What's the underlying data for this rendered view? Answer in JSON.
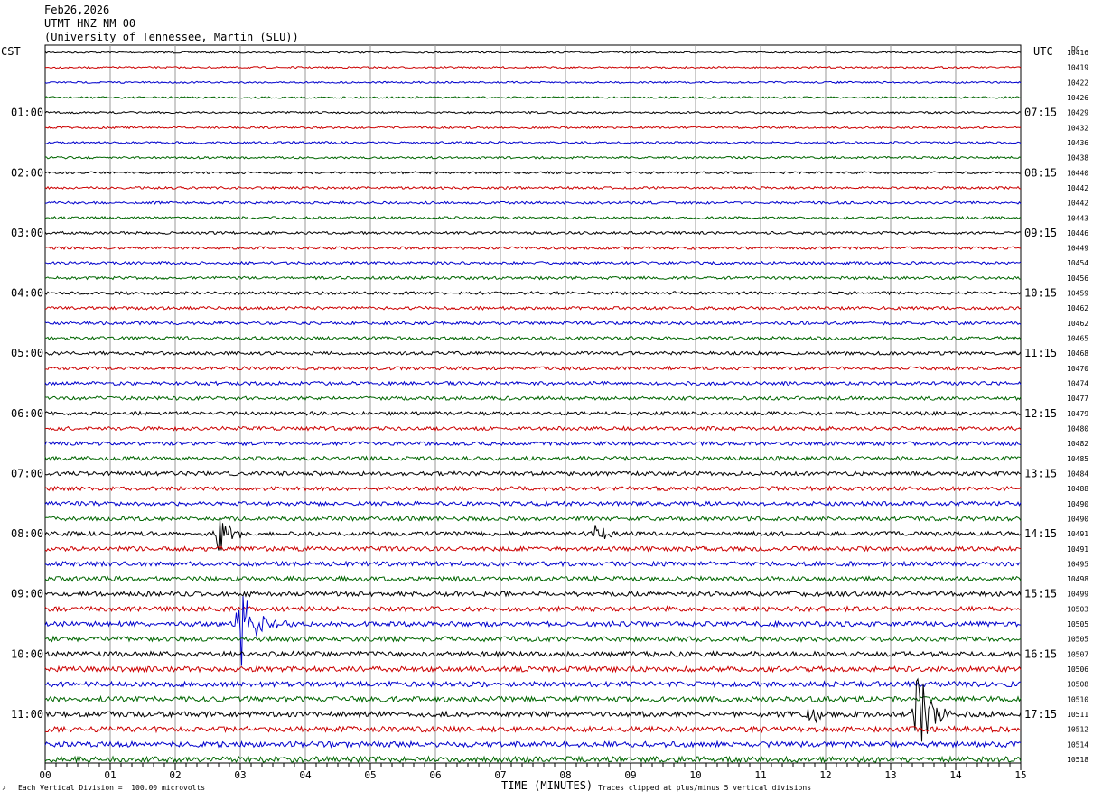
{
  "header": {
    "date": "Feb26,2026",
    "station": "UTMT HNZ NM 00",
    "network": "(University of Tennessee, Martin (SLU))"
  },
  "left_zone": "CST",
  "right_zone": "UTC",
  "dc_label": "DC",
  "footer": {
    "scale_note": "Each Vertical Division =  100.00 microvolts",
    "axis_title": "TIME (MINUTES)",
    "clip_note": "Traces clipped at plus/minus 5 vertical divisions"
  },
  "colors": {
    "cycle": [
      "#000000",
      "#cc0000",
      "#0000cc",
      "#006600"
    ],
    "grid": "#999999"
  },
  "chart_data": {
    "type": "line",
    "title": "",
    "xlabel": "TIME (MINUTES)",
    "xlim": [
      0,
      15
    ],
    "x_tick_labels": [
      "00",
      "01",
      "02",
      "03",
      "04",
      "05",
      "06",
      "07",
      "08",
      "09",
      "10",
      "11",
      "12",
      "13",
      "14",
      "15"
    ],
    "trace_count": 48,
    "left_hour_labels": [
      "01:00",
      "02:00",
      "03:00",
      "04:00",
      "05:00",
      "06:00",
      "07:00",
      "08:00",
      "09:00",
      "10:00",
      "11:00"
    ],
    "right_hour_labels": [
      "07:15",
      "08:15",
      "09:15",
      "10:15",
      "11:15",
      "12:15",
      "13:15",
      "14:15",
      "15:15",
      "16:15",
      "17:15"
    ],
    "dc_offsets": [
      "10416",
      "10419",
      "10422",
      "10426",
      "10429",
      "10432",
      "10436",
      "10438",
      "10440",
      "10442",
      "10442",
      "10443",
      "10446",
      "10449",
      "10454",
      "10456",
      "10459",
      "10462",
      "10462",
      "10465",
      "10468",
      "10470",
      "10474",
      "10477",
      "10479",
      "10480",
      "10482",
      "10485",
      "10484",
      "10488",
      "10490",
      "10490",
      "10491",
      "10491",
      "10495",
      "10498",
      "10499",
      "10503",
      "10505",
      "10505",
      "10507",
      "10506",
      "10508",
      "10510",
      "10511",
      "10512",
      "10514",
      "10518"
    ],
    "events": [
      {
        "trace": 32,
        "minute": 2.65,
        "amplitude": 22
      },
      {
        "trace": 32,
        "minute": 8.45,
        "amplitude": 10
      },
      {
        "trace": 38,
        "minute": 3.0,
        "amplitude": 55
      },
      {
        "trace": 44,
        "minute": 13.4,
        "amplitude": 55
      },
      {
        "trace": 44,
        "minute": 11.75,
        "amplitude": 12
      }
    ]
  }
}
